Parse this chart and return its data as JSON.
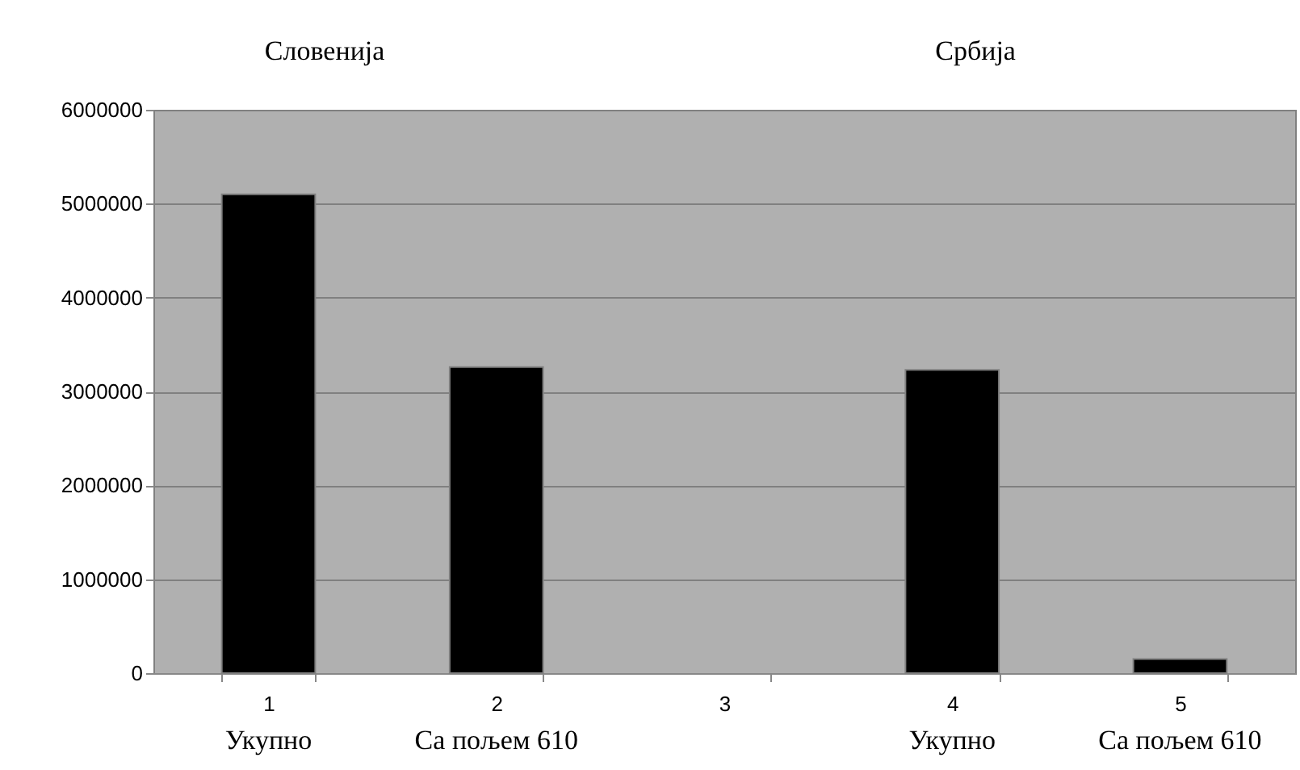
{
  "chart_data": {
    "type": "bar",
    "categories": [
      "1",
      "2",
      "3",
      "4",
      "5"
    ],
    "values": [
      5100000,
      3260000,
      null,
      3230000,
      150000
    ],
    "color": "#000000",
    "ylim": [
      0,
      6000000
    ],
    "yticks": [
      0,
      1000000,
      2000000,
      3000000,
      4000000,
      5000000,
      6000000
    ],
    "grid": "y",
    "annotations": [
      "Словенија",
      "Србија",
      "Укупно",
      "Са пољем 610",
      "Укупно",
      "Са пољем 610"
    ]
  }
}
